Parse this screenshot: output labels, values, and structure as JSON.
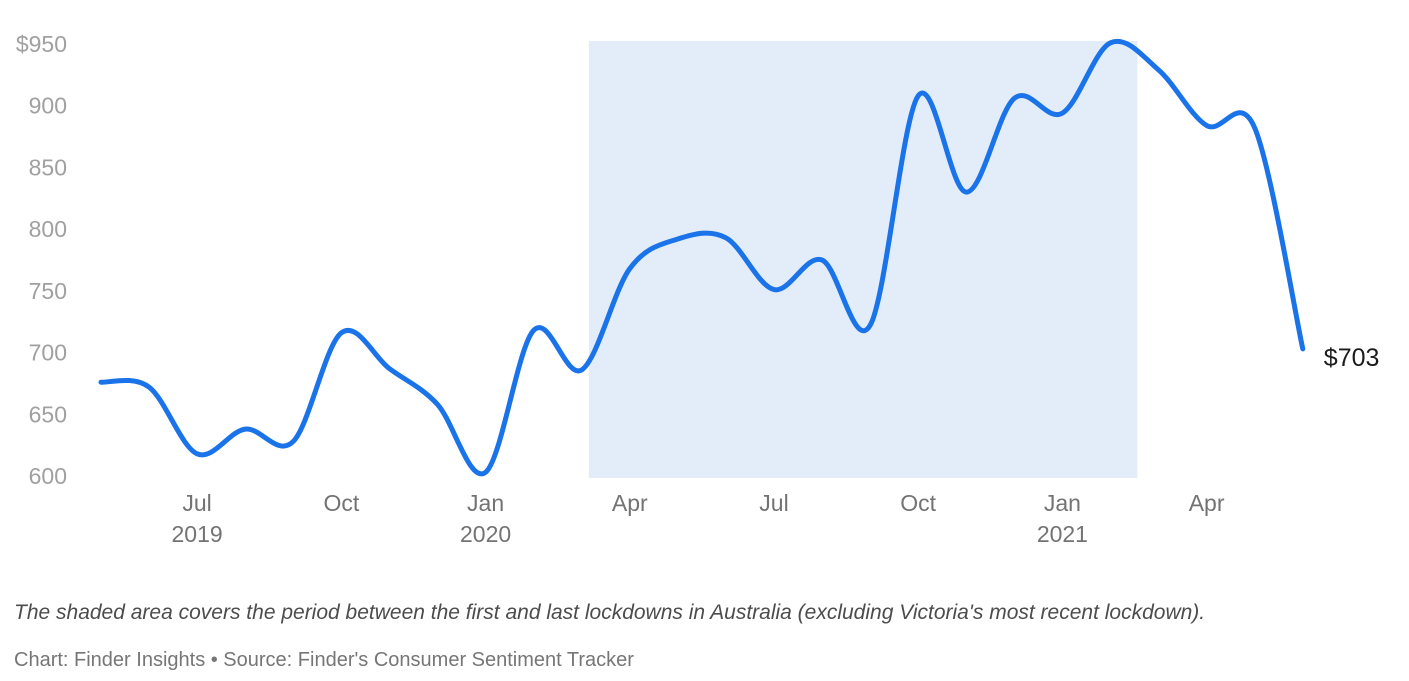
{
  "chart_data": {
    "type": "line",
    "title": "",
    "xlabel": "",
    "ylabel": "",
    "ylim": [
      600,
      950
    ],
    "grid": false,
    "legend": "none",
    "currency_prefix": "$",
    "categories": [
      "May 2019",
      "Jun 2019",
      "Jul 2019",
      "Aug 2019",
      "Sep 2019",
      "Oct 2019",
      "Nov 2019",
      "Dec 2019",
      "Jan 2020",
      "Feb 2020",
      "Mar 2020",
      "Apr 2020",
      "May 2020",
      "Jun 2020",
      "Jul 2020",
      "Aug 2020",
      "Sep 2020",
      "Oct 2020",
      "Nov 2020",
      "Dec 2020",
      "Jan 2021",
      "Feb 2021",
      "Mar 2021",
      "Apr 2021",
      "May 2021",
      "Jun 2021"
    ],
    "values": [
      676,
      672,
      618,
      638,
      628,
      716,
      687,
      658,
      603,
      718,
      686,
      768,
      792,
      793,
      751,
      775,
      722,
      908,
      830,
      906,
      894,
      951,
      929,
      884,
      882,
      703
    ],
    "y_axis": {
      "ticks": [
        {
          "label": "$950",
          "value": 950
        },
        {
          "label": "900",
          "value": 900
        },
        {
          "label": "850",
          "value": 850
        },
        {
          "label": "800",
          "value": 800
        },
        {
          "label": "750",
          "value": 750
        },
        {
          "label": "700",
          "value": 700
        },
        {
          "label": "650",
          "value": 650
        },
        {
          "label": "600",
          "value": 600
        }
      ]
    },
    "x_axis": {
      "ticks": [
        {
          "label": "Jul",
          "year": "2019",
          "index": 2
        },
        {
          "label": "Oct",
          "year": "",
          "index": 5
        },
        {
          "label": "Jan",
          "year": "2020",
          "index": 8
        },
        {
          "label": "Apr",
          "year": "",
          "index": 11
        },
        {
          "label": "Jul",
          "year": "",
          "index": 14
        },
        {
          "label": "Oct",
          "year": "",
          "index": 17
        },
        {
          "label": "Jan",
          "year": "2021",
          "index": 20
        },
        {
          "label": "Apr",
          "year": "",
          "index": 23
        }
      ]
    },
    "shaded_region": {
      "start_index": 10.15,
      "end_index": 21.56
    },
    "end_label": {
      "text": "$703"
    },
    "colors": {
      "line": "#1a73e8",
      "shade": "#e3edfa"
    }
  },
  "caption": {
    "text": "The shaded area covers the period between the first and last lockdowns in Australia (excluding Victoria's most recent lockdown)."
  },
  "credit": {
    "text": "Chart: Finder Insights • Source: Finder's Consumer Sentiment Tracker"
  }
}
